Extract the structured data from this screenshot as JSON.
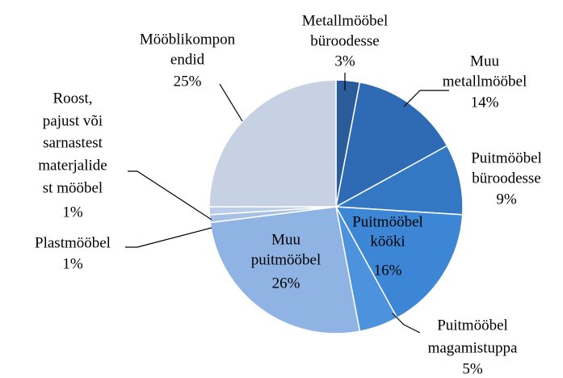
{
  "chart_data": {
    "type": "pie",
    "categories": [
      [
        "Metallmööbel",
        "büroodesse"
      ],
      [
        "Muu",
        "metallmööbel"
      ],
      [
        "Puitmööbel",
        "büroodesse"
      ],
      [
        "Puitmööbel",
        "kööki"
      ],
      [
        "Puitmööbel",
        "magamistuppa"
      ],
      [
        "Muu",
        "puitmööbel"
      ],
      [
        "Plastmööbel"
      ],
      [
        "Roost,",
        "pajust või",
        "sarnastest",
        "materjalide",
        "st mööbel"
      ],
      [
        "Mööblikompon",
        "endid"
      ]
    ],
    "values": [
      3,
      14,
      9,
      16,
      5,
      26,
      1,
      1,
      25
    ],
    "value_labels": [
      "3%",
      "14%",
      "9%",
      "16%",
      "5%",
      "26%",
      "1%",
      "1%",
      "25%"
    ],
    "colors": [
      "#2a5c9a",
      "#2f6bb4",
      "#3478c4",
      "#3d86d6",
      "#4d92dc",
      "#8fb3e3",
      "#a7c0e6",
      "#bccde9",
      "#c6d1e4"
    ]
  }
}
